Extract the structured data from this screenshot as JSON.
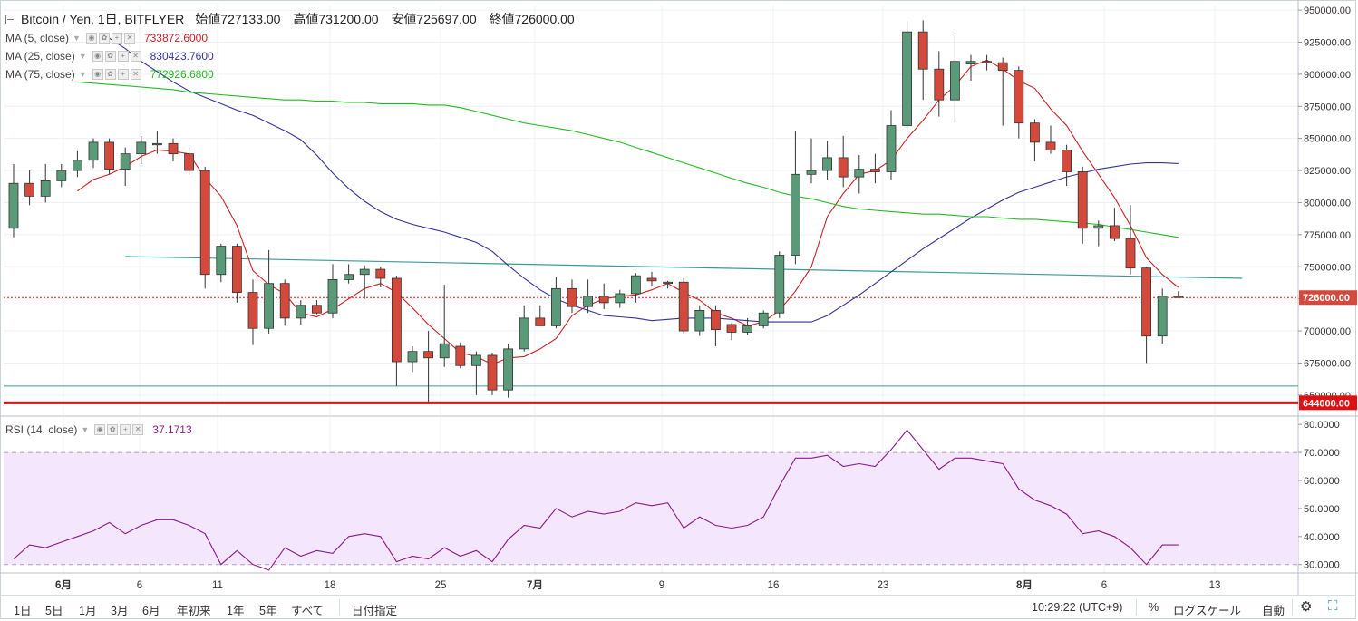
{
  "header": {
    "symbol": "Bitcoin / Yen, 1日, BITFLYER",
    "open": "始値727133.00",
    "high": "高値731200.00",
    "low": "安値725697.00",
    "close": "終値726000.00"
  },
  "indicators": [
    {
      "name": "MA (5, close)",
      "value": "733872.6000",
      "color": "#cc2222"
    },
    {
      "name": "MA (25, close)",
      "value": "830423.7600",
      "color": "#333399"
    },
    {
      "name": "MA (75, close)",
      "value": "772926.6800",
      "color": "#22bb22"
    }
  ],
  "rsi_legend": {
    "name": "RSI (14, close)",
    "value": "37.1713",
    "color": "#8b1a8b"
  },
  "price_axis": {
    "ticks": [
      "950000.00",
      "925000.00",
      "900000.00",
      "875000.00",
      "850000.00",
      "825000.00",
      "800000.00",
      "775000.00",
      "750000.00",
      "725000.00",
      "700000.00",
      "675000.00",
      "650000.00"
    ],
    "current_label": "726000.00",
    "support_label": "644000.00"
  },
  "rsi_axis": {
    "ticks": [
      "80.0000",
      "70.0000",
      "60.0000",
      "50.0000",
      "40.0000",
      "30.0000"
    ]
  },
  "time_axis": {
    "labels": [
      "6月",
      "6",
      "11",
      "18",
      "25",
      "7月",
      "9",
      "16",
      "23",
      "8月",
      "6",
      "13"
    ]
  },
  "toolbar": {
    "timeframes": [
      "1日",
      "5日",
      "1月",
      "3月",
      "6月",
      "年初来",
      "1年",
      "5年",
      "すべて"
    ],
    "date_range": "日付指定",
    "clock": "10:29:22 (UTC+9)",
    "percent": "%",
    "log_scale": "ログスケール",
    "auto": "自動",
    "gear_icon": "gear-icon",
    "fullscreen_icon": "fullscreen-icon"
  },
  "colors": {
    "up": "#5b9a78",
    "down": "#d34a3c",
    "support": "#dd1111",
    "trend": "#3a9a9a",
    "rsi_band": "#f4e6fc"
  },
  "chart_data": [
    {
      "type": "candlestick",
      "x_labels": [
        "6月",
        "6",
        "11",
        "18",
        "25",
        "7月",
        "9",
        "16",
        "23",
        "8月",
        "6",
        "13"
      ],
      "ylim": [
        640000,
        955000
      ],
      "candles": [
        {
          "o": 780000,
          "h": 830000,
          "l": 773000,
          "c": 815000
        },
        {
          "o": 815000,
          "h": 825000,
          "l": 798000,
          "c": 805000
        },
        {
          "o": 805000,
          "h": 830000,
          "l": 800000,
          "c": 817000
        },
        {
          "o": 817000,
          "h": 830000,
          "l": 812000,
          "c": 825000
        },
        {
          "o": 825000,
          "h": 840000,
          "l": 820000,
          "c": 833000
        },
        {
          "o": 833000,
          "h": 850000,
          "l": 827000,
          "c": 847000
        },
        {
          "o": 847000,
          "h": 850000,
          "l": 822000,
          "c": 826000
        },
        {
          "o": 826000,
          "h": 843000,
          "l": 813000,
          "c": 838000
        },
        {
          "o": 838000,
          "h": 852000,
          "l": 830000,
          "c": 847000
        },
        {
          "o": 845000,
          "h": 856000,
          "l": 838000,
          "c": 846000
        },
        {
          "o": 846000,
          "h": 850000,
          "l": 832000,
          "c": 838000
        },
        {
          "o": 838000,
          "h": 843000,
          "l": 822000,
          "c": 825000
        },
        {
          "o": 825000,
          "h": 828000,
          "l": 733000,
          "c": 744000
        },
        {
          "o": 744000,
          "h": 768000,
          "l": 738000,
          "c": 766000
        },
        {
          "o": 766000,
          "h": 768000,
          "l": 722000,
          "c": 730000
        },
        {
          "o": 730000,
          "h": 740000,
          "l": 689000,
          "c": 702000
        },
        {
          "o": 702000,
          "h": 763000,
          "l": 698000,
          "c": 737000
        },
        {
          "o": 737000,
          "h": 740000,
          "l": 704000,
          "c": 710000
        },
        {
          "o": 710000,
          "h": 724000,
          "l": 705000,
          "c": 720000
        },
        {
          "o": 720000,
          "h": 724000,
          "l": 713000,
          "c": 714000
        },
        {
          "o": 714000,
          "h": 752000,
          "l": 710000,
          "c": 740000
        },
        {
          "o": 740000,
          "h": 752000,
          "l": 737000,
          "c": 744000
        },
        {
          "o": 744000,
          "h": 751000,
          "l": 725000,
          "c": 748000
        },
        {
          "o": 748000,
          "h": 750000,
          "l": 734000,
          "c": 741000
        },
        {
          "o": 741000,
          "h": 743000,
          "l": 657000,
          "c": 676000
        },
        {
          "o": 676000,
          "h": 688000,
          "l": 668000,
          "c": 684000
        },
        {
          "o": 684000,
          "h": 700000,
          "l": 645000,
          "c": 679000
        },
        {
          "o": 679000,
          "h": 736000,
          "l": 672000,
          "c": 690000
        },
        {
          "o": 688000,
          "h": 691000,
          "l": 671000,
          "c": 673000
        },
        {
          "o": 673000,
          "h": 684000,
          "l": 650000,
          "c": 681000
        },
        {
          "o": 681000,
          "h": 683000,
          "l": 650000,
          "c": 654000
        },
        {
          "o": 654000,
          "h": 690000,
          "l": 648000,
          "c": 686000
        },
        {
          "o": 686000,
          "h": 720000,
          "l": 684000,
          "c": 710000
        },
        {
          "o": 710000,
          "h": 720000,
          "l": 705000,
          "c": 704000
        },
        {
          "o": 704000,
          "h": 742000,
          "l": 702000,
          "c": 733000
        },
        {
          "o": 733000,
          "h": 740000,
          "l": 714000,
          "c": 719000
        },
        {
          "o": 719000,
          "h": 740000,
          "l": 714000,
          "c": 727000
        },
        {
          "o": 727000,
          "h": 737000,
          "l": 717000,
          "c": 722000
        },
        {
          "o": 722000,
          "h": 732000,
          "l": 718000,
          "c": 729000
        },
        {
          "o": 729000,
          "h": 745000,
          "l": 722000,
          "c": 743000
        },
        {
          "o": 741000,
          "h": 746000,
          "l": 735000,
          "c": 739000
        },
        {
          "o": 737000,
          "h": 739000,
          "l": 733000,
          "c": 738000
        },
        {
          "o": 738000,
          "h": 741000,
          "l": 698000,
          "c": 700000
        },
        {
          "o": 700000,
          "h": 720000,
          "l": 696000,
          "c": 716000
        },
        {
          "o": 716000,
          "h": 720000,
          "l": 688000,
          "c": 701000
        },
        {
          "o": 705000,
          "h": 706000,
          "l": 693000,
          "c": 699000
        },
        {
          "o": 699000,
          "h": 710000,
          "l": 697000,
          "c": 704000
        },
        {
          "o": 704000,
          "h": 716000,
          "l": 702000,
          "c": 714000
        },
        {
          "o": 714000,
          "h": 762000,
          "l": 710000,
          "c": 759000
        },
        {
          "o": 759000,
          "h": 856000,
          "l": 752000,
          "c": 822000
        },
        {
          "o": 822000,
          "h": 850000,
          "l": 815000,
          "c": 825000
        },
        {
          "o": 825000,
          "h": 848000,
          "l": 818000,
          "c": 835000
        },
        {
          "o": 835000,
          "h": 852000,
          "l": 812000,
          "c": 820000
        },
        {
          "o": 820000,
          "h": 837000,
          "l": 807000,
          "c": 826000
        },
        {
          "o": 826000,
          "h": 838000,
          "l": 815000,
          "c": 824000
        },
        {
          "o": 824000,
          "h": 872000,
          "l": 818000,
          "c": 860000
        },
        {
          "o": 860000,
          "h": 941000,
          "l": 857000,
          "c": 933000
        },
        {
          "o": 933000,
          "h": 942000,
          "l": 880000,
          "c": 904000
        },
        {
          "o": 904000,
          "h": 918000,
          "l": 867000,
          "c": 880000
        },
        {
          "o": 880000,
          "h": 930000,
          "l": 862000,
          "c": 910000
        },
        {
          "o": 908000,
          "h": 915000,
          "l": 895000,
          "c": 910000
        },
        {
          "o": 910000,
          "h": 915000,
          "l": 903000,
          "c": 909000
        },
        {
          "o": 909000,
          "h": 913000,
          "l": 860000,
          "c": 903000
        },
        {
          "o": 903000,
          "h": 906000,
          "l": 850000,
          "c": 862000
        },
        {
          "o": 862000,
          "h": 865000,
          "l": 832000,
          "c": 847000
        },
        {
          "o": 847000,
          "h": 860000,
          "l": 838000,
          "c": 841000
        },
        {
          "o": 841000,
          "h": 845000,
          "l": 813000,
          "c": 824000
        },
        {
          "o": 824000,
          "h": 828000,
          "l": 768000,
          "c": 780000
        },
        {
          "o": 780000,
          "h": 786000,
          "l": 766000,
          "c": 782000
        },
        {
          "o": 782000,
          "h": 796000,
          "l": 770000,
          "c": 772000
        },
        {
          "o": 772000,
          "h": 798000,
          "l": 744000,
          "c": 749000
        },
        {
          "o": 749000,
          "h": 750000,
          "l": 675000,
          "c": 696000
        },
        {
          "o": 696000,
          "h": 733000,
          "l": 690000,
          "c": 727000
        },
        {
          "o": 727000,
          "h": 731000,
          "l": 725697,
          "c": 726000
        }
      ],
      "series": [
        {
          "name": "MA (5, close)",
          "color": "#cc2222",
          "values": [
            null,
            null,
            null,
            null,
            809000,
            818000,
            822000,
            828000,
            836000,
            841000,
            840000,
            838000,
            819000,
            805000,
            782000,
            747000,
            736000,
            729000,
            714000,
            711000,
            717000,
            725000,
            733000,
            737000,
            730000,
            718000,
            705000,
            694000,
            683000,
            680000,
            674000,
            679000,
            680000,
            686000,
            694000,
            712000,
            720000,
            725000,
            727000,
            728000,
            732000,
            737000,
            730000,
            724000,
            714000,
            710000,
            704000,
            707000,
            716000,
            731000,
            750000,
            789000,
            807000,
            822000,
            825000,
            833000,
            850000,
            864000,
            880000,
            891000,
            906000,
            911000,
            904000,
            895000,
            889000,
            873000,
            860000,
            840000,
            822000,
            804000,
            782000,
            757000,
            744000,
            733872
          ]
        },
        {
          "name": "MA (25, close)",
          "color": "#333399",
          "values": [
            928000,
            920000,
            910000,
            902000,
            894000,
            887000,
            882000,
            877000,
            872000,
            868000,
            862000,
            856000,
            849000,
            837000,
            823000,
            811000,
            801000,
            793000,
            787000,
            783000,
            780000,
            777000,
            773000,
            769000,
            762000,
            751000,
            741000,
            732000,
            725000,
            720000,
            716000,
            712000,
            711000,
            710000,
            708000,
            709000,
            710000,
            710000,
            710000,
            709000,
            708000,
            707000,
            707000,
            707000,
            707000,
            712000,
            720000,
            728000,
            737000,
            746000,
            755000,
            764000,
            772000,
            780000,
            788000,
            795000,
            802000,
            808000,
            812000,
            816000,
            820000,
            823000,
            826000,
            828000,
            830000,
            831000,
            831000,
            830423
          ]
        },
        {
          "name": "MA (75, close)",
          "color": "#22bb22",
          "values": [
            894000,
            893000,
            892000,
            891000,
            890000,
            889000,
            888000,
            886000,
            885000,
            884000,
            883000,
            882000,
            881000,
            880000,
            880000,
            879000,
            879000,
            878000,
            878000,
            877000,
            877000,
            877000,
            876000,
            876000,
            874000,
            871000,
            868000,
            865000,
            862000,
            860000,
            858000,
            856000,
            853000,
            850000,
            847000,
            843000,
            839000,
            835000,
            831000,
            827000,
            823000,
            819000,
            815000,
            812000,
            808000,
            805000,
            803000,
            800000,
            797000,
            795000,
            794000,
            793000,
            792000,
            791000,
            791000,
            790000,
            789000,
            789000,
            788000,
            787000,
            787000,
            786000,
            785000,
            784000,
            783000,
            781000,
            779000,
            777000,
            775000,
            772926
          ]
        }
      ],
      "annotations": [
        {
          "type": "trendline",
          "from": {
            "index": 7,
            "value": 758000
          },
          "to": {
            "index": 77,
            "value": 741000
          },
          "color": "#3a9a9a"
        },
        {
          "type": "hline",
          "value": 657000,
          "color": "#3a9a9a"
        },
        {
          "type": "hline",
          "value": 644000,
          "color": "#dd1111",
          "label": "644000.00"
        },
        {
          "type": "hline",
          "value": 726000,
          "color": "#cc2222",
          "style": "dotted",
          "label": "726000.00"
        }
      ]
    },
    {
      "type": "line",
      "title": "RSI (14, close)",
      "ylim": [
        27,
        82
      ],
      "bands": [
        30,
        70
      ],
      "series": [
        {
          "name": "RSI (14, close)",
          "color": "#8b1a8b",
          "values": [
            32,
            37,
            36,
            38,
            40,
            42,
            45,
            41,
            44,
            46,
            46,
            44,
            41,
            30,
            35,
            30,
            28,
            36,
            33,
            35,
            34,
            40,
            41,
            40,
            31,
            33,
            32,
            36,
            33,
            35,
            31,
            39,
            44,
            43,
            50,
            47,
            49,
            48,
            49,
            52,
            51,
            52,
            43,
            47,
            44,
            43,
            44,
            47,
            58,
            68,
            68,
            69,
            65,
            66,
            65,
            71,
            78,
            71,
            64,
            68,
            68,
            67,
            66,
            57,
            53,
            51,
            48,
            41,
            42,
            40,
            36,
            30,
            37,
            37
          ]
        }
      ]
    }
  ]
}
